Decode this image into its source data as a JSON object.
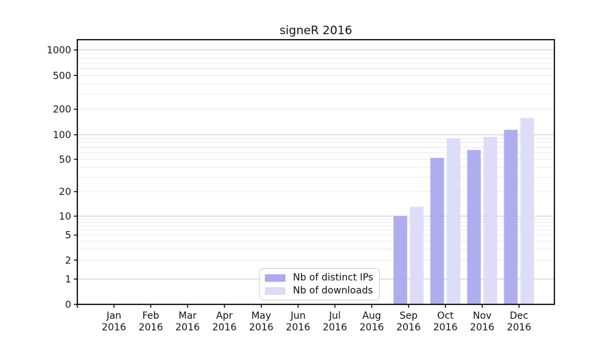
{
  "figure": {
    "title": "signeR 2016"
  },
  "chart_data": {
    "type": "bar",
    "title": "signeR 2016",
    "categories": [
      "Jan 2016",
      "Feb 2016",
      "Mar 2016",
      "Apr 2016",
      "May 2016",
      "Jun 2016",
      "Jul 2016",
      "Aug 2016",
      "Sep 2016",
      "Oct 2016",
      "Nov 2016",
      "Dec 2016"
    ],
    "series": [
      {
        "name": "Nb of distinct IPs",
        "color": "#aaaaee",
        "values": [
          0,
          0,
          0,
          0,
          0,
          0,
          0,
          0,
          10,
          52,
          65,
          114
        ]
      },
      {
        "name": "Nb of downloads",
        "color": "#dbdbf8",
        "values": [
          0,
          0,
          0,
          0,
          0,
          0,
          0,
          0,
          13,
          90,
          94,
          158
        ]
      }
    ],
    "xlabel": "",
    "ylabel": "",
    "yscale": "symlog",
    "yticks": [
      0,
      1,
      2,
      5,
      10,
      20,
      50,
      100,
      200,
      500,
      1000
    ],
    "ylim": [
      0,
      1400
    ],
    "grid": "both",
    "legend_position": "lower center",
    "colors": {
      "major_grid": "#c6c6c6",
      "minor_grid": "#eaeaea",
      "axis": "#000000",
      "text": "#111111"
    }
  }
}
